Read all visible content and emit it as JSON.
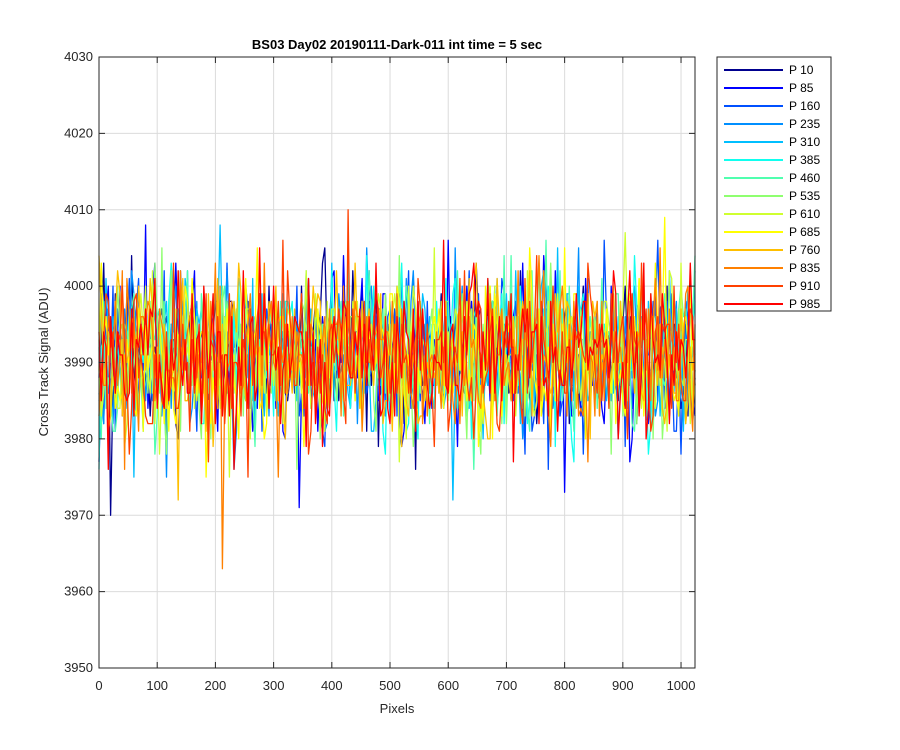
{
  "chart_data": {
    "type": "line",
    "title": "BS03 Day02 20190111-Dark-011 int time = 5 sec",
    "xlabel": "Pixels",
    "ylabel": "Cross Track Signal (ADU)",
    "xlim": [
      0,
      1024
    ],
    "ylim": [
      3950,
      4030
    ],
    "xticks": [
      0,
      100,
      200,
      300,
      400,
      500,
      600,
      700,
      800,
      900,
      1000
    ],
    "yticks": [
      3950,
      3960,
      3970,
      3980,
      3990,
      4000,
      4010,
      4020,
      4030
    ],
    "grid": true,
    "legend_position": "outside-top-right",
    "series": [
      {
        "name": "P 10",
        "color": "#00008F",
        "mean": 3991,
        "spread": 5.5
      },
      {
        "name": "P 85",
        "color": "#0000FF",
        "mean": 3991,
        "spread": 5.5
      },
      {
        "name": "P 160",
        "color": "#0050FF",
        "mean": 3991,
        "spread": 5.5
      },
      {
        "name": "P 235",
        "color": "#008FFF",
        "mean": 3991,
        "spread": 5.5
      },
      {
        "name": "P 310",
        "color": "#00BFFF",
        "mean": 3991,
        "spread": 5.5
      },
      {
        "name": "P 385",
        "color": "#10FFEF",
        "mean": 3991,
        "spread": 5.5
      },
      {
        "name": "P 460",
        "color": "#50FFAF",
        "mean": 3991,
        "spread": 5.5
      },
      {
        "name": "P 535",
        "color": "#8FFF70",
        "mean": 3991,
        "spread": 5.5
      },
      {
        "name": "P 610",
        "color": "#CFFF30",
        "mean": 3991,
        "spread": 5.5
      },
      {
        "name": "P 685",
        "color": "#FFFF00",
        "mean": 3991,
        "spread": 5.5
      },
      {
        "name": "P 760",
        "color": "#FFBF00",
        "mean": 3991,
        "spread": 5.5
      },
      {
        "name": "P 835",
        "color": "#FF8000",
        "mean": 3991,
        "spread": 5.5
      },
      {
        "name": "P 910",
        "color": "#FF4000",
        "mean": 3991,
        "spread": 5.5
      },
      {
        "name": "P 985",
        "color": "#FF0000",
        "mean": 3991,
        "spread": 5.5
      }
    ]
  }
}
